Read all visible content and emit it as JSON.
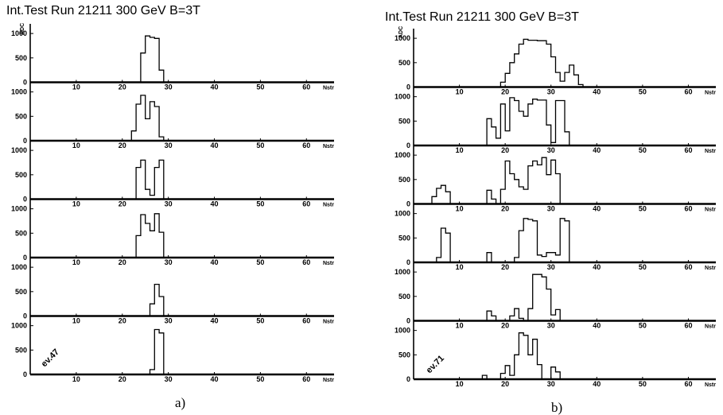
{
  "figure": {
    "panels": [
      {
        "title": "Int.Test    Run 21211   300 GeV    B=3T",
        "caption": "a)",
        "event_label": "ev.47",
        "x_axis_unit": "Nstr",
        "y_axis_unit": "ADC",
        "x_ticks": [
          "10",
          "20",
          "30",
          "40",
          "50",
          "60"
        ],
        "y_ticks": [
          "0",
          "500",
          "1000"
        ]
      },
      {
        "title": "Int.Test    Run 21211   300 GeV    B=3T",
        "caption": "b)",
        "event_label": "ev.71",
        "x_axis_unit": "Nstr",
        "y_axis_unit": "ADC",
        "x_ticks": [
          "10",
          "20",
          "30",
          "40",
          "50",
          "60"
        ],
        "y_ticks": [
          "0",
          "500",
          "1000"
        ]
      }
    ]
  },
  "chart_data": [
    {
      "type": "histogram",
      "title": "Int.Test Run 21211 300 GeV B=3T",
      "panel": "a)",
      "event": "ev.47",
      "xlabel": "Nstr",
      "ylabel": "ADC",
      "xlim": [
        0,
        66
      ],
      "ylim": [
        0,
        1100
      ],
      "series": [
        {
          "bins": [
            [
              22,
              24,
              0
            ],
            [
              24,
              25,
              600
            ],
            [
              25,
              26,
              950
            ],
            [
              26,
              27,
              920
            ],
            [
              27,
              28,
              900
            ],
            [
              28,
              29,
              250
            ],
            [
              29,
              30,
              0
            ]
          ]
        },
        {
          "bins": [
            [
              21,
              22,
              0
            ],
            [
              22,
              23,
              200
            ],
            [
              23,
              24,
              750
            ],
            [
              24,
              25,
              930
            ],
            [
              25,
              26,
              450
            ],
            [
              26,
              27,
              800
            ],
            [
              27,
              28,
              700
            ],
            [
              28,
              29,
              80
            ],
            [
              29,
              30,
              0
            ]
          ]
        },
        {
          "bins": [
            [
              22,
              23,
              0
            ],
            [
              23,
              24,
              650
            ],
            [
              24,
              25,
              800
            ],
            [
              25,
              26,
              200
            ],
            [
              26,
              27,
              80
            ],
            [
              27,
              28,
              650
            ],
            [
              28,
              29,
              800
            ],
            [
              29,
              30,
              0
            ]
          ]
        },
        {
          "bins": [
            [
              23,
              24,
              450
            ],
            [
              24,
              25,
              880
            ],
            [
              25,
              26,
              700
            ],
            [
              26,
              27,
              550
            ],
            [
              27,
              28,
              900
            ],
            [
              28,
              29,
              520
            ],
            [
              29,
              30,
              0
            ]
          ]
        },
        {
          "bins": [
            [
              26,
              27,
              250
            ],
            [
              27,
              28,
              650
            ],
            [
              28,
              29,
              400
            ],
            [
              29,
              30,
              0
            ]
          ]
        },
        {
          "bins": [
            [
              26,
              27,
              100
            ],
            [
              27,
              28,
              920
            ],
            [
              28,
              29,
              850
            ],
            [
              29,
              30,
              0
            ]
          ]
        }
      ]
    },
    {
      "type": "histogram",
      "title": "Int.Test Run 21211 300 GeV B=3T",
      "panel": "b)",
      "event": "ev.71",
      "xlabel": "Nstr",
      "ylabel": "ADC",
      "xlim": [
        0,
        66
      ],
      "ylim": [
        0,
        1100
      ],
      "series": [
        {
          "bins": [
            [
              19,
              20,
              100
            ],
            [
              20,
              21,
              280
            ],
            [
              21,
              22,
              500
            ],
            [
              22,
              23,
              680
            ],
            [
              23,
              24,
              880
            ],
            [
              24,
              25,
              980
            ],
            [
              25,
              26,
              960
            ],
            [
              26,
              27,
              960
            ],
            [
              27,
              28,
              950
            ],
            [
              28,
              29,
              950
            ],
            [
              29,
              30,
              880
            ],
            [
              30,
              31,
              620
            ],
            [
              31,
              32,
              300
            ],
            [
              32,
              33,
              120
            ],
            [
              33,
              34,
              300
            ],
            [
              34,
              35,
              450
            ],
            [
              35,
              36,
              250
            ],
            [
              36,
              37,
              50
            ]
          ]
        },
        {
          "bins": [
            [
              16,
              17,
              550
            ],
            [
              17,
              18,
              380
            ],
            [
              18,
              19,
              150
            ],
            [
              19,
              20,
              850
            ],
            [
              20,
              21,
              300
            ],
            [
              21,
              22,
              980
            ],
            [
              22,
              23,
              920
            ],
            [
              23,
              24,
              700
            ],
            [
              24,
              25,
              600
            ],
            [
              25,
              26,
              850
            ],
            [
              26,
              27,
              950
            ],
            [
              27,
              28,
              930
            ],
            [
              28,
              29,
              930
            ],
            [
              29,
              30,
              420
            ],
            [
              30,
              31,
              60
            ],
            [
              31,
              32,
              920
            ],
            [
              32,
              33,
              920
            ],
            [
              33,
              34,
              280
            ],
            [
              34,
              35,
              0
            ]
          ]
        },
        {
          "bins": [
            [
              4,
              5,
              150
            ],
            [
              5,
              6,
              320
            ],
            [
              6,
              7,
              380
            ],
            [
              7,
              8,
              250
            ],
            [
              8,
              9,
              0
            ],
            [
              16,
              17,
              280
            ],
            [
              17,
              18,
              100
            ],
            [
              18,
              19,
              0
            ],
            [
              19,
              20,
              300
            ],
            [
              20,
              21,
              880
            ],
            [
              21,
              22,
              620
            ],
            [
              22,
              23,
              500
            ],
            [
              23,
              24,
              350
            ],
            [
              24,
              25,
              300
            ],
            [
              25,
              26,
              780
            ],
            [
              26,
              27,
              880
            ],
            [
              27,
              28,
              800
            ],
            [
              28,
              29,
              950
            ],
            [
              29,
              30,
              600
            ],
            [
              30,
              31,
              900
            ],
            [
              31,
              32,
              620
            ],
            [
              32,
              33,
              0
            ]
          ]
        },
        {
          "bins": [
            [
              5,
              6,
              100
            ],
            [
              6,
              7,
              700
            ],
            [
              7,
              8,
              600
            ],
            [
              8,
              9,
              0
            ],
            [
              16,
              17,
              200
            ],
            [
              17,
              18,
              0
            ],
            [
              22,
              23,
              100
            ],
            [
              23,
              24,
              650
            ],
            [
              24,
              25,
              900
            ],
            [
              25,
              26,
              880
            ],
            [
              26,
              27,
              850
            ],
            [
              27,
              28,
              150
            ],
            [
              28,
              29,
              120
            ],
            [
              29,
              30,
              200
            ],
            [
              30,
              31,
              200
            ],
            [
              31,
              32,
              150
            ],
            [
              32,
              33,
              900
            ],
            [
              33,
              34,
              850
            ],
            [
              34,
              35,
              0
            ]
          ]
        },
        {
          "bins": [
            [
              16,
              17,
              200
            ],
            [
              17,
              18,
              100
            ],
            [
              21,
              22,
              100
            ],
            [
              22,
              23,
              250
            ],
            [
              23,
              24,
              50
            ],
            [
              25,
              26,
              250
            ],
            [
              26,
              27,
              950
            ],
            [
              27,
              28,
              950
            ],
            [
              28,
              29,
              900
            ],
            [
              29,
              30,
              650
            ],
            [
              30,
              31,
              120
            ],
            [
              31,
              32,
              230
            ],
            [
              32,
              33,
              0
            ]
          ]
        },
        {
          "bins": [
            [
              15,
              16,
              80
            ],
            [
              16,
              17,
              0
            ],
            [
              19,
              20,
              120
            ],
            [
              20,
              21,
              280
            ],
            [
              21,
              22,
              80
            ],
            [
              22,
              23,
              500
            ],
            [
              23,
              24,
              950
            ],
            [
              24,
              25,
              900
            ],
            [
              25,
              26,
              500
            ],
            [
              26,
              27,
              820
            ],
            [
              27,
              28,
              300
            ],
            [
              28,
              29,
              0
            ],
            [
              30,
              31,
              250
            ],
            [
              31,
              32,
              150
            ],
            [
              32,
              33,
              0
            ]
          ]
        }
      ]
    }
  ]
}
